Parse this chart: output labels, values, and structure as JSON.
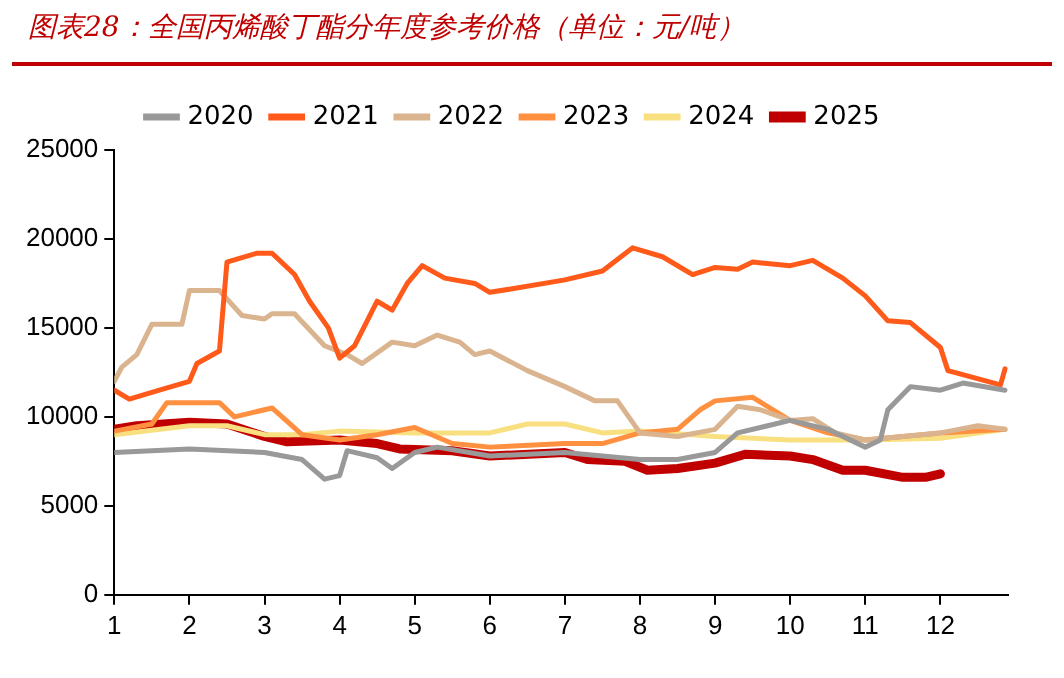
{
  "chart_data": {
    "type": "line",
    "title": "图表28：全国丙烯酸丁酯分年度参考价格（单位：元/吨）",
    "xlim": [
      1,
      12.9
    ],
    "xticks": [
      1,
      2,
      3,
      4,
      5,
      6,
      7,
      8,
      9,
      10,
      11,
      12
    ],
    "ylim": [
      0,
      25000
    ],
    "yticks": [
      0,
      5000,
      10000,
      15000,
      20000,
      25000
    ],
    "grid": false,
    "legend": "top",
    "marker": "none",
    "series": [
      {
        "name": "2020",
        "color": "#999999",
        "x": [
          1,
          2,
          3,
          3.5,
          3.8,
          4,
          4.1,
          4.5,
          4.7,
          5,
          5.3,
          6,
          7,
          8,
          8.5,
          9,
          9.3,
          9.7,
          10,
          10.5,
          11,
          11.2,
          11.3,
          11.6,
          12,
          12.3,
          12.86
        ],
        "values": [
          8000,
          8200,
          8000,
          7600,
          6500,
          6700,
          8100,
          7700,
          7100,
          8000,
          8300,
          7800,
          8000,
          7600,
          7600,
          8000,
          9100,
          9500,
          9800,
          9300,
          8300,
          8700,
          10400,
          11700,
          11500,
          11900,
          11500
        ]
      },
      {
        "name": "2021",
        "color": "#ff5a1a",
        "x": [
          1,
          1.2,
          1.6,
          2,
          2.1,
          2.4,
          2.5,
          2.9,
          3.1,
          3.4,
          3.6,
          3.85,
          4,
          4.2,
          4.5,
          4.7,
          4.9,
          5.1,
          5.4,
          5.8,
          6,
          6.3,
          7,
          7.5,
          7.9,
          8.3,
          8.7,
          9,
          9.3,
          9.5,
          10,
          10.3,
          10.7,
          11,
          11.3,
          11.6,
          12,
          12.1,
          12.8,
          12.86
        ],
        "values": [
          11500,
          11000,
          11500,
          12000,
          13000,
          13700,
          18700,
          19200,
          19200,
          18000,
          16500,
          15000,
          13300,
          14000,
          16500,
          16000,
          17500,
          18500,
          17800,
          17500,
          17000,
          17200,
          17700,
          18200,
          19500,
          19000,
          18000,
          18400,
          18300,
          18700,
          18500,
          18800,
          17800,
          16800,
          15400,
          15300,
          13900,
          12600,
          11800,
          12700
        ]
      },
      {
        "name": "2022",
        "color": "#d9b48f",
        "x": [
          1,
          1.1,
          1.3,
          1.5,
          1.9,
          2,
          2.4,
          2.7,
          3,
          3.1,
          3.4,
          3.8,
          4.1,
          4.3,
          4.7,
          5,
          5.3,
          5.6,
          5.8,
          6,
          6.5,
          7,
          7.4,
          7.7,
          8,
          8.5,
          9,
          9.3,
          9.6,
          10,
          10.3,
          10.6,
          11,
          11.5,
          12,
          12.5,
          12.86
        ],
        "values": [
          12000,
          12800,
          13500,
          15200,
          15200,
          17100,
          17100,
          15700,
          15500,
          15800,
          15800,
          14000,
          13500,
          13000,
          14200,
          14000,
          14600,
          14200,
          13500,
          13700,
          12600,
          11700,
          10900,
          10900,
          9100,
          8900,
          9300,
          10600,
          10400,
          9800,
          9900,
          9100,
          8700,
          8900,
          9100,
          9500,
          9300
        ]
      },
      {
        "name": "2023",
        "color": "#ff9040",
        "x": [
          1,
          1.5,
          1.7,
          2.4,
          2.6,
          2.9,
          3.1,
          3.5,
          4,
          4.5,
          5,
          5.5,
          6,
          7,
          7.5,
          8,
          8.5,
          8.8,
          9,
          9.5,
          10,
          10.5,
          11,
          11.5,
          12,
          12.86
        ],
        "values": [
          9200,
          9600,
          10800,
          10800,
          10000,
          10300,
          10500,
          9000,
          8700,
          9000,
          9400,
          8500,
          8300,
          8500,
          8500,
          9100,
          9300,
          10400,
          10900,
          11100,
          9800,
          9100,
          8700,
          8900,
          9100,
          9300
        ]
      },
      {
        "name": "2024",
        "color": "#f8e080",
        "x": [
          1,
          2,
          2.5,
          3,
          3.5,
          4,
          5,
          6,
          6.5,
          7,
          7.5,
          8,
          9,
          10,
          11,
          12,
          12.86
        ],
        "values": [
          9000,
          9500,
          9500,
          9000,
          9000,
          9200,
          9100,
          9100,
          9600,
          9600,
          9100,
          9200,
          8900,
          8700,
          8700,
          8800,
          9300
        ]
      },
      {
        "name": "2025",
        "color": "#c00000",
        "x": [
          1,
          1.3,
          2,
          2.5,
          3,
          3.3,
          4,
          4.5,
          4.8,
          5.5,
          6,
          7,
          7.3,
          7.8,
          8.1,
          8.5,
          9,
          9.4,
          10,
          10.3,
          10.7,
          11,
          11.5,
          11.8,
          12
        ],
        "values": [
          9300,
          9500,
          9700,
          9600,
          8900,
          8600,
          8700,
          8500,
          8200,
          8100,
          7800,
          8000,
          7600,
          7500,
          7000,
          7100,
          7400,
          7900,
          7800,
          7600,
          7000,
          7000,
          6600,
          6600,
          6800
        ]
      }
    ]
  }
}
